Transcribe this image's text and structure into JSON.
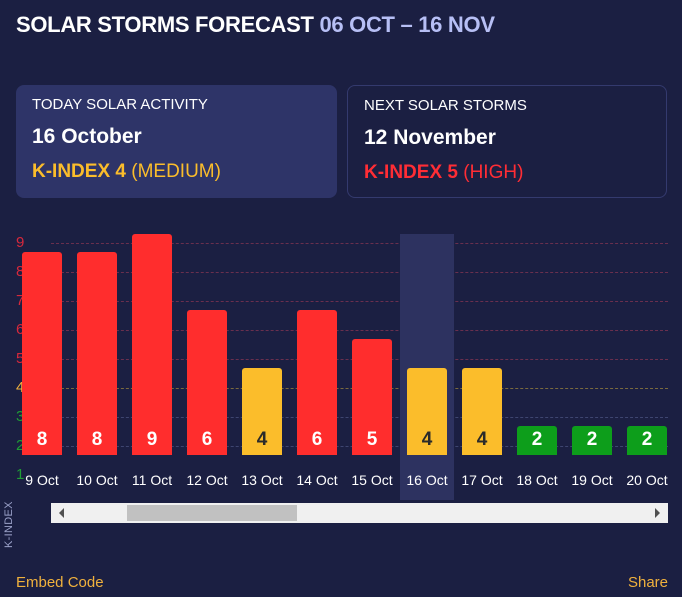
{
  "header": {
    "title": "SOLAR STORMS FORECAST",
    "range": "06 OCT – 16 NOV"
  },
  "today": {
    "label": "TODAY SOLAR ACTIVITY",
    "date": "16 October",
    "kindex": "K-INDEX 4",
    "level": "(MEDIUM)",
    "color": "#fbbd2b"
  },
  "next": {
    "label": "NEXT SOLAR STORMS",
    "date": "12 November",
    "kindex": "K-INDEX 5",
    "level": "(HIGH)",
    "color": "#ff2d35"
  },
  "footer": {
    "embed": "Embed Code",
    "share": "Share"
  },
  "chart_data": {
    "type": "bar",
    "ylabel": "K-INDEX",
    "yticks": [
      "1",
      "2",
      "3",
      "4",
      "5",
      "6",
      "7",
      "8",
      "9"
    ],
    "categories": [
      "9 Oct",
      "10 Oct",
      "11 Oct",
      "12 Oct",
      "13 Oct",
      "14 Oct",
      "15 Oct",
      "16 Oct",
      "17 Oct",
      "18 Oct",
      "19 Oct",
      "20 Oct"
    ],
    "values": [
      8,
      8,
      9,
      6,
      4,
      6,
      5,
      4,
      4,
      2,
      2,
      2
    ],
    "highlighted": "16 Oct",
    "colors": {
      "low": "#0d9e1b",
      "medium": "#fbbd2b",
      "high": "#ff2d2d"
    },
    "tick_colors": {
      "low": "#1f9e35",
      "medium": "#f0b13d",
      "high": "#d7283c"
    },
    "scroll_position": 0.12
  }
}
